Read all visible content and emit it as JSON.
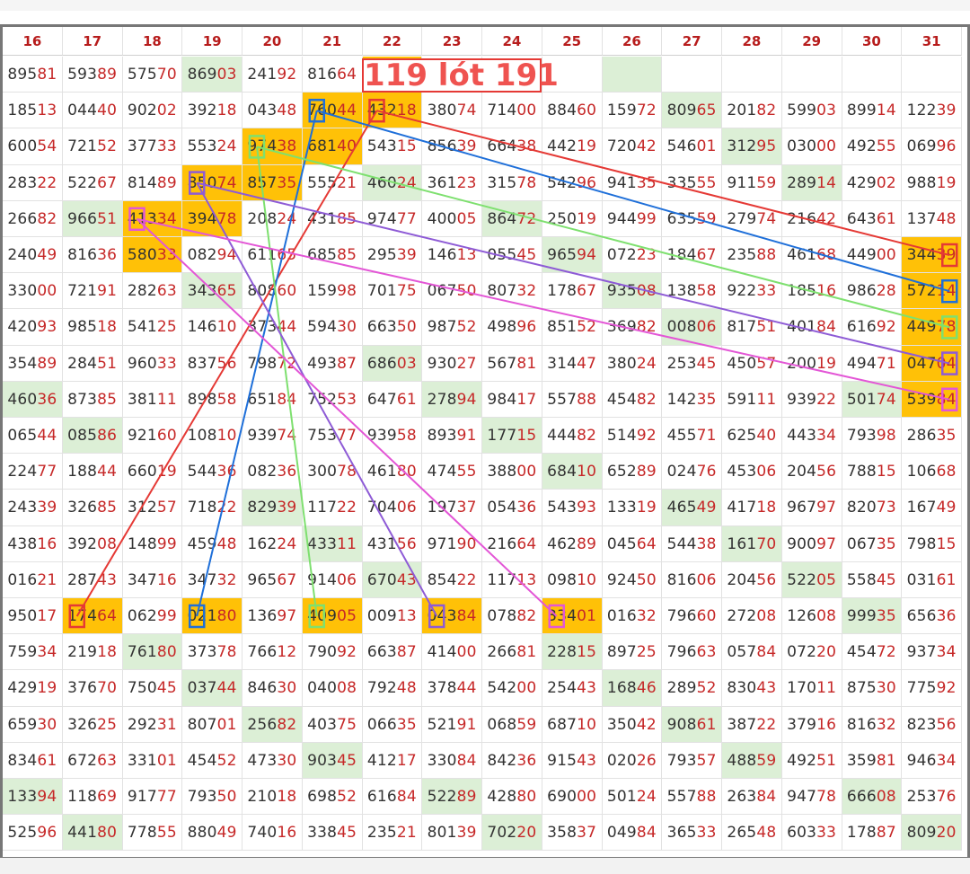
{
  "banner": "119 lót 191",
  "columns": [
    "16",
    "17",
    "18",
    "19",
    "20",
    "21",
    "22",
    "23",
    "24",
    "25",
    "26",
    "27",
    "28",
    "29",
    "30",
    "31"
  ],
  "rows": [
    [
      "89581",
      "59389",
      "57570",
      "86903",
      "24192",
      "81664",
      "",
      "",
      "",
      "",
      "",
      "",
      "",
      "",
      "",
      ""
    ],
    [
      "18513",
      "04440",
      "90202",
      "39218",
      "04348",
      "76044",
      "43218",
      "38074",
      "71400",
      "88460",
      "15972",
      "80965",
      "20182",
      "59903",
      "89914",
      "12239"
    ],
    [
      "60054",
      "72152",
      "37733",
      "55324",
      "97438",
      "68140",
      "54315",
      "85639",
      "66438",
      "44219",
      "72042",
      "54601",
      "31295",
      "03000",
      "49255",
      "06996"
    ],
    [
      "28322",
      "52267",
      "81489",
      "85074",
      "85735",
      "55521",
      "46024",
      "36123",
      "31578",
      "54296",
      "94135",
      "33555",
      "91159",
      "28914",
      "42902",
      "98819"
    ],
    [
      "26682",
      "96651",
      "41334",
      "39478",
      "20824",
      "43185",
      "97477",
      "40005",
      "86472",
      "25019",
      "94499",
      "63559",
      "27974",
      "21642",
      "64361",
      "13748"
    ],
    [
      "24049",
      "81636",
      "58033",
      "08294",
      "61165",
      "68585",
      "29539",
      "14613",
      "05545",
      "96594",
      "07223",
      "18467",
      "23588",
      "46168",
      "44900",
      "34439"
    ],
    [
      "33000",
      "72191",
      "28263",
      "34365",
      "80860",
      "15998",
      "70175",
      "06750",
      "80732",
      "17867",
      "93508",
      "13858",
      "92233",
      "18516",
      "98628",
      "57214"
    ],
    [
      "42093",
      "98518",
      "54125",
      "14610",
      "37344",
      "59430",
      "66350",
      "98752",
      "49896",
      "85152",
      "36982",
      "00806",
      "81751",
      "40184",
      "61692",
      "44978"
    ],
    [
      "35489",
      "28451",
      "96033",
      "83756",
      "79872",
      "49387",
      "68603",
      "93027",
      "56781",
      "31447",
      "38024",
      "25345",
      "45057",
      "20019",
      "49471",
      "04704"
    ],
    [
      "46036",
      "87385",
      "38111",
      "89858",
      "65184",
      "75253",
      "64761",
      "27894",
      "98417",
      "55788",
      "45482",
      "14235",
      "59111",
      "93922",
      "50174",
      "53984"
    ],
    [
      "06544",
      "08586",
      "92160",
      "10810",
      "93974",
      "75377",
      "93958",
      "89391",
      "17715",
      "44482",
      "51492",
      "45571",
      "62540",
      "44334",
      "79398",
      "28635"
    ],
    [
      "22477",
      "18844",
      "66019",
      "54436",
      "08236",
      "30078",
      "46180",
      "47455",
      "38800",
      "68410",
      "65289",
      "02476",
      "45306",
      "20456",
      "78815",
      "10668"
    ],
    [
      "24339",
      "32685",
      "31257",
      "71822",
      "82939",
      "11722",
      "70406",
      "19737",
      "05436",
      "54393",
      "13319",
      "46549",
      "41718",
      "96797",
      "82073",
      "16749"
    ],
    [
      "43816",
      "39208",
      "14899",
      "45948",
      "16224",
      "43311",
      "43156",
      "97190",
      "21664",
      "46289",
      "04564",
      "54438",
      "16170",
      "90097",
      "06735",
      "79815"
    ],
    [
      "01621",
      "28743",
      "34716",
      "34732",
      "96567",
      "91406",
      "67043",
      "85422",
      "11713",
      "09810",
      "92450",
      "81606",
      "20456",
      "52205",
      "55845",
      "03161"
    ],
    [
      "95017",
      "17464",
      "06299",
      "02180",
      "13697",
      "40905",
      "00913",
      "04384",
      "07882",
      "33401",
      "01632",
      "79660",
      "27208",
      "12608",
      "99935",
      "65636"
    ],
    [
      "75934",
      "21918",
      "76180",
      "37378",
      "76612",
      "79092",
      "66387",
      "41400",
      "26681",
      "22815",
      "89725",
      "79663",
      "05784",
      "07220",
      "45472",
      "93734"
    ],
    [
      "42919",
      "37670",
      "75045",
      "03744",
      "84630",
      "04008",
      "79248",
      "37844",
      "54200",
      "25443",
      "16846",
      "28952",
      "83043",
      "17011",
      "87530",
      "77592"
    ],
    [
      "65930",
      "32625",
      "29231",
      "80701",
      "25682",
      "40375",
      "06635",
      "52191",
      "06859",
      "68710",
      "35042",
      "90861",
      "38722",
      "37916",
      "81632",
      "82356"
    ],
    [
      "83461",
      "67263",
      "33101",
      "45452",
      "47330",
      "90345",
      "41217",
      "33084",
      "84236",
      "91543",
      "02026",
      "79357",
      "48859",
      "49251",
      "35981",
      "94634"
    ],
    [
      "13394",
      "11869",
      "91777",
      "79350",
      "21018",
      "69852",
      "61684",
      "52289",
      "42880",
      "69000",
      "50124",
      "55788",
      "26384",
      "94778",
      "66608",
      "25376"
    ],
    [
      "52596",
      "44180",
      "77855",
      "88049",
      "74016",
      "33845",
      "23521",
      "80139",
      "70220",
      "35837",
      "04984",
      "36533",
      "26548",
      "60333",
      "17887",
      "80920"
    ]
  ],
  "green_cells": [
    [
      0,
      3
    ],
    [
      0,
      10
    ],
    [
      1,
      11
    ],
    [
      2,
      12
    ],
    [
      3,
      6
    ],
    [
      3,
      13
    ],
    [
      4,
      1
    ],
    [
      4,
      8
    ],
    [
      5,
      9
    ],
    [
      6,
      3
    ],
    [
      6,
      10
    ],
    [
      7,
      11
    ],
    [
      8,
      6
    ],
    [
      9,
      0
    ],
    [
      9,
      7
    ],
    [
      9,
      14
    ],
    [
      10,
      1
    ],
    [
      10,
      8
    ],
    [
      11,
      9
    ],
    [
      12,
      4
    ],
    [
      12,
      11
    ],
    [
      13,
      5
    ],
    [
      13,
      12
    ],
    [
      14,
      6
    ],
    [
      14,
      13
    ],
    [
      15,
      14
    ],
    [
      16,
      2
    ],
    [
      16,
      9
    ],
    [
      17,
      3
    ],
    [
      17,
      10
    ],
    [
      18,
      4
    ],
    [
      18,
      11
    ],
    [
      19,
      5
    ],
    [
      19,
      12
    ],
    [
      20,
      0
    ],
    [
      20,
      7
    ],
    [
      20,
      14
    ],
    [
      21,
      1
    ],
    [
      21,
      8
    ],
    [
      21,
      15
    ]
  ],
  "orange_cells": [
    [
      0,
      6
    ],
    [
      1,
      5
    ],
    [
      1,
      6
    ],
    [
      2,
      4
    ],
    [
      2,
      5
    ],
    [
      3,
      3
    ],
    [
      3,
      4
    ],
    [
      4,
      2
    ],
    [
      4,
      3
    ],
    [
      5,
      2
    ],
    [
      5,
      15
    ],
    [
      6,
      15
    ],
    [
      7,
      15
    ],
    [
      8,
      15
    ],
    [
      9,
      15
    ],
    [
      15,
      1
    ],
    [
      15,
      3
    ],
    [
      15,
      5
    ],
    [
      15,
      7
    ],
    [
      15,
      9
    ]
  ],
  "highlight_color": "#ffc107",
  "links": [
    {
      "color": "#e53935",
      "from": [
        1,
        6
      ],
      "to": [
        5,
        15
      ],
      "via": [
        15,
        1
      ]
    },
    {
      "color": "#1e6fd9",
      "from": [
        1,
        5
      ],
      "to": [
        6,
        15
      ],
      "via": [
        15,
        3
      ]
    },
    {
      "color": "#7ee06f",
      "from": [
        2,
        4
      ],
      "to": [
        7,
        15
      ],
      "via": [
        15,
        5
      ]
    },
    {
      "color": "#8e5bd6",
      "from": [
        3,
        3
      ],
      "to": [
        8,
        15
      ],
      "via": [
        15,
        7
      ]
    },
    {
      "color": "#e356d6",
      "from": [
        4,
        2
      ],
      "to": [
        9,
        15
      ],
      "via": [
        15,
        9
      ]
    }
  ]
}
